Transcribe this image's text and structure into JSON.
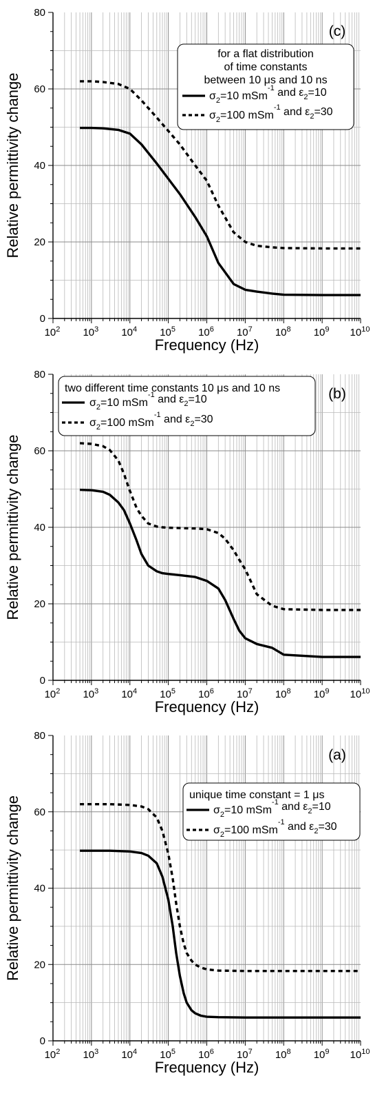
{
  "chart_data": [
    {
      "type": "line",
      "panel_label": "(c)",
      "xlabel": "Frequency  (Hz)",
      "ylabel": "Relative permittivity change",
      "x_scale": "log",
      "xlim": [
        100,
        10000000000
      ],
      "ylim": [
        0,
        80
      ],
      "x_ticks": [
        {
          "base": "10",
          "exp": "2"
        },
        {
          "base": "10",
          "exp": "3"
        },
        {
          "base": "10",
          "exp": "4"
        },
        {
          "base": "10",
          "exp": "5"
        },
        {
          "base": "10",
          "exp": "6"
        },
        {
          "base": "10",
          "exp": "7"
        },
        {
          "base": "10",
          "exp": "8"
        },
        {
          "base": "10",
          "exp": "9"
        },
        {
          "base": "10",
          "exp": "10"
        }
      ],
      "y_ticks": [
        "0",
        "20",
        "40",
        "60",
        "80"
      ],
      "grid": true,
      "legend": {
        "position": "top-right",
        "title_lines": [
          "for a flat distribution",
          "of time constants",
          "between 10 μs and 10 ns"
        ],
        "entries": [
          {
            "style": "solid",
            "parts": [
              "σ",
              "2",
              "=10 mSm",
              "-1",
              " and ε",
              "2",
              "=10"
            ]
          },
          {
            "style": "dashed",
            "parts": [
              "σ",
              "2",
              "=100 mSm",
              "-1",
              " and ε",
              "2",
              "=30"
            ]
          }
        ]
      },
      "series": [
        {
          "style": "solid",
          "x": [
            500,
            1000,
            2000,
            5000,
            10000,
            20000,
            50000,
            100000,
            200000,
            500000,
            1000000,
            2000000,
            5000000,
            10000000,
            20000000,
            50000000,
            100000000,
            1000000000,
            10000000000
          ],
          "y": [
            49.8,
            49.8,
            49.7,
            49.3,
            48.3,
            45.5,
            40.5,
            36.5,
            32.5,
            26.5,
            21.5,
            14.5,
            9,
            7.5,
            7,
            6.5,
            6.2,
            6.1,
            6.1
          ]
        },
        {
          "style": "dashed",
          "x": [
            500,
            1000,
            2000,
            5000,
            10000,
            20000,
            50000,
            100000,
            200000,
            500000,
            1000000,
            2000000,
            5000000,
            10000000,
            20000000,
            50000000,
            100000000,
            1000000000,
            10000000000
          ],
          "y": [
            62,
            62,
            61.8,
            61.3,
            60,
            57,
            52.5,
            49,
            45.5,
            40,
            36,
            29.5,
            22.5,
            20,
            19,
            18.6,
            18.4,
            18.3,
            18.3
          ]
        }
      ]
    },
    {
      "type": "line",
      "panel_label": "(b)",
      "xlabel": "Frequency  (Hz)",
      "ylabel": "Relative permittivity change",
      "x_scale": "log",
      "xlim": [
        100,
        10000000000
      ],
      "ylim": [
        0,
        80
      ],
      "x_ticks": [
        {
          "base": "10",
          "exp": "2"
        },
        {
          "base": "10",
          "exp": "3"
        },
        {
          "base": "10",
          "exp": "4"
        },
        {
          "base": "10",
          "exp": "5"
        },
        {
          "base": "10",
          "exp": "6"
        },
        {
          "base": "10",
          "exp": "7"
        },
        {
          "base": "10",
          "exp": "8"
        },
        {
          "base": "10",
          "exp": "9"
        },
        {
          "base": "10",
          "exp": "10"
        }
      ],
      "y_ticks": [
        "0",
        "20",
        "40",
        "60",
        "80"
      ],
      "grid": true,
      "legend": {
        "position": "top-left",
        "title_lines": [
          "two different time constants 10 μs and 10 ns"
        ],
        "entries": [
          {
            "style": "solid",
            "parts": [
              "σ",
              "2",
              "=10 mSm",
              "-1",
              " and ε",
              "2",
              "=10"
            ]
          },
          {
            "style": "dashed",
            "parts": [
              "σ",
              "2",
              "=100 mSm",
              "-1",
              " and ε",
              "2",
              "=30"
            ]
          }
        ]
      },
      "series": [
        {
          "style": "solid",
          "x": [
            500,
            1000,
            2000,
            3000,
            5000,
            7000,
            10000,
            15000,
            20000,
            30000,
            50000,
            70000,
            100000,
            200000,
            500000,
            1000000,
            2000000,
            3000000,
            5000000,
            7000000,
            10000000,
            20000000,
            50000000,
            100000000,
            1000000000,
            10000000000
          ],
          "y": [
            49.8,
            49.7,
            49.3,
            48.5,
            46.5,
            44.5,
            41,
            36.5,
            33,
            30,
            28.5,
            28,
            27.8,
            27.5,
            27,
            26,
            24,
            21,
            16,
            13,
            11,
            9.5,
            8.5,
            6.7,
            6.1,
            6.1
          ]
        },
        {
          "style": "dashed",
          "x": [
            500,
            1000,
            2000,
            3000,
            5000,
            7000,
            10000,
            15000,
            20000,
            30000,
            50000,
            70000,
            100000,
            200000,
            500000,
            1000000,
            2000000,
            3000000,
            5000000,
            7000000,
            10000000,
            20000000,
            50000000,
            100000000,
            1000000000,
            10000000000
          ],
          "y": [
            62,
            61.8,
            61.2,
            60.2,
            57.5,
            54,
            49.5,
            45,
            43,
            41,
            40.2,
            40,
            39.9,
            39.8,
            39.7,
            39.5,
            38.5,
            37,
            34,
            31.5,
            29,
            22.5,
            19.5,
            18.6,
            18.4,
            18.4
          ]
        }
      ]
    },
    {
      "type": "line",
      "panel_label": "(a)",
      "xlabel": "Frequency  (Hz)",
      "ylabel": "Relative permittivity change",
      "x_scale": "log",
      "xlim": [
        100,
        10000000000
      ],
      "ylim": [
        0,
        80
      ],
      "x_ticks": [
        {
          "base": "10",
          "exp": "2"
        },
        {
          "base": "10",
          "exp": "3"
        },
        {
          "base": "10",
          "exp": "4"
        },
        {
          "base": "10",
          "exp": "5"
        },
        {
          "base": "10",
          "exp": "6"
        },
        {
          "base": "10",
          "exp": "7"
        },
        {
          "base": "10",
          "exp": "8"
        },
        {
          "base": "10",
          "exp": "9"
        },
        {
          "base": "10",
          "exp": "10"
        }
      ],
      "y_ticks": [
        "0",
        "20",
        "40",
        "60",
        "80"
      ],
      "grid": true,
      "legend": {
        "position": "top-right",
        "title_lines": [
          "unique time constant = 1 μs"
        ],
        "entries": [
          {
            "style": "solid",
            "parts": [
              "σ",
              "2",
              "=10 mSm",
              "-1",
              " and ε",
              "2",
              "=10"
            ]
          },
          {
            "style": "dashed",
            "parts": [
              "σ",
              "2",
              "=100 mSm",
              "-1",
              " and ε",
              "2",
              "=30"
            ]
          }
        ]
      },
      "series": [
        {
          "style": "solid",
          "x": [
            500,
            1000,
            3000,
            10000,
            20000,
            30000,
            50000,
            70000,
            100000,
            130000,
            160000,
            200000,
            250000,
            300000,
            400000,
            500000,
            700000,
            1000000,
            2000000,
            10000000,
            100000000,
            10000000000
          ],
          "y": [
            49.8,
            49.8,
            49.8,
            49.6,
            49.2,
            48.5,
            46.5,
            43,
            37,
            30,
            23,
            17,
            12.5,
            10,
            8,
            7.2,
            6.6,
            6.3,
            6.2,
            6.1,
            6.1,
            6.1
          ]
        },
        {
          "style": "dashed",
          "x": [
            500,
            1000,
            3000,
            10000,
            20000,
            30000,
            50000,
            70000,
            100000,
            130000,
            160000,
            200000,
            250000,
            300000,
            400000,
            500000,
            700000,
            1000000,
            2000000,
            10000000,
            100000000,
            10000000000
          ],
          "y": [
            62,
            62,
            62,
            61.8,
            61.4,
            60.7,
            58.5,
            55,
            49,
            42.5,
            36,
            30,
            25.5,
            23,
            21,
            20,
            19.2,
            18.7,
            18.4,
            18.3,
            18.3,
            18.3
          ]
        }
      ]
    }
  ]
}
